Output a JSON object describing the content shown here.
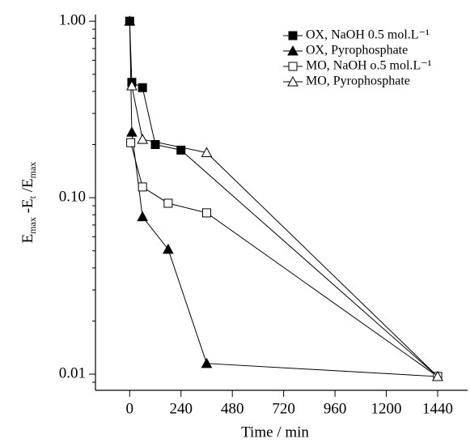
{
  "chart_data": {
    "type": "line",
    "xlabel": "Time / min",
    "ylabel_parts": [
      "E",
      "max",
      " -E",
      "t",
      " /E",
      "max"
    ],
    "log_y": true,
    "xlim": [
      -160,
      1580
    ],
    "xticks": [
      0,
      240,
      480,
      720,
      960,
      1200,
      1440
    ],
    "ylim": [
      0.0081,
      1.09
    ],
    "yticks": [
      {
        "value": 1,
        "label": "1.00"
      },
      {
        "value": 0.1,
        "label": "0.10"
      },
      {
        "value": 0.01,
        "label": "0.01"
      }
    ],
    "legend": "top-right",
    "series": [
      {
        "name": "OX, NaOH 0.5 mol.L⁻¹",
        "color": "#000000",
        "marker": "square",
        "filled": true,
        "x": [
          0,
          10,
          60,
          120,
          240,
          1440
        ],
        "values": [
          1.0,
          0.45,
          0.42,
          0.2,
          0.186,
          0.0097
        ]
      },
      {
        "name": "OX, Pyrophosphate",
        "color": "#000000",
        "marker": "triangle",
        "filled": true,
        "x": [
          0,
          10,
          60,
          180,
          360,
          1440
        ],
        "values": [
          1.0,
          0.235,
          0.078,
          0.051,
          0.0115,
          0.0097
        ]
      },
      {
        "name": "MO, NaOH o.5 mol.L⁻¹",
        "color": "#000000",
        "marker": "square",
        "filled": false,
        "x": [
          5,
          60,
          180,
          360,
          1440
        ],
        "values": [
          0.205,
          0.115,
          0.093,
          0.082,
          0.0097
        ]
      },
      {
        "name": "MO, Pyrophosphate",
        "color": "#000000",
        "marker": "triangle",
        "filled": false,
        "x": [
          10,
          60,
          360,
          1440
        ],
        "values": [
          0.43,
          0.214,
          0.18,
          0.0097
        ]
      }
    ]
  }
}
